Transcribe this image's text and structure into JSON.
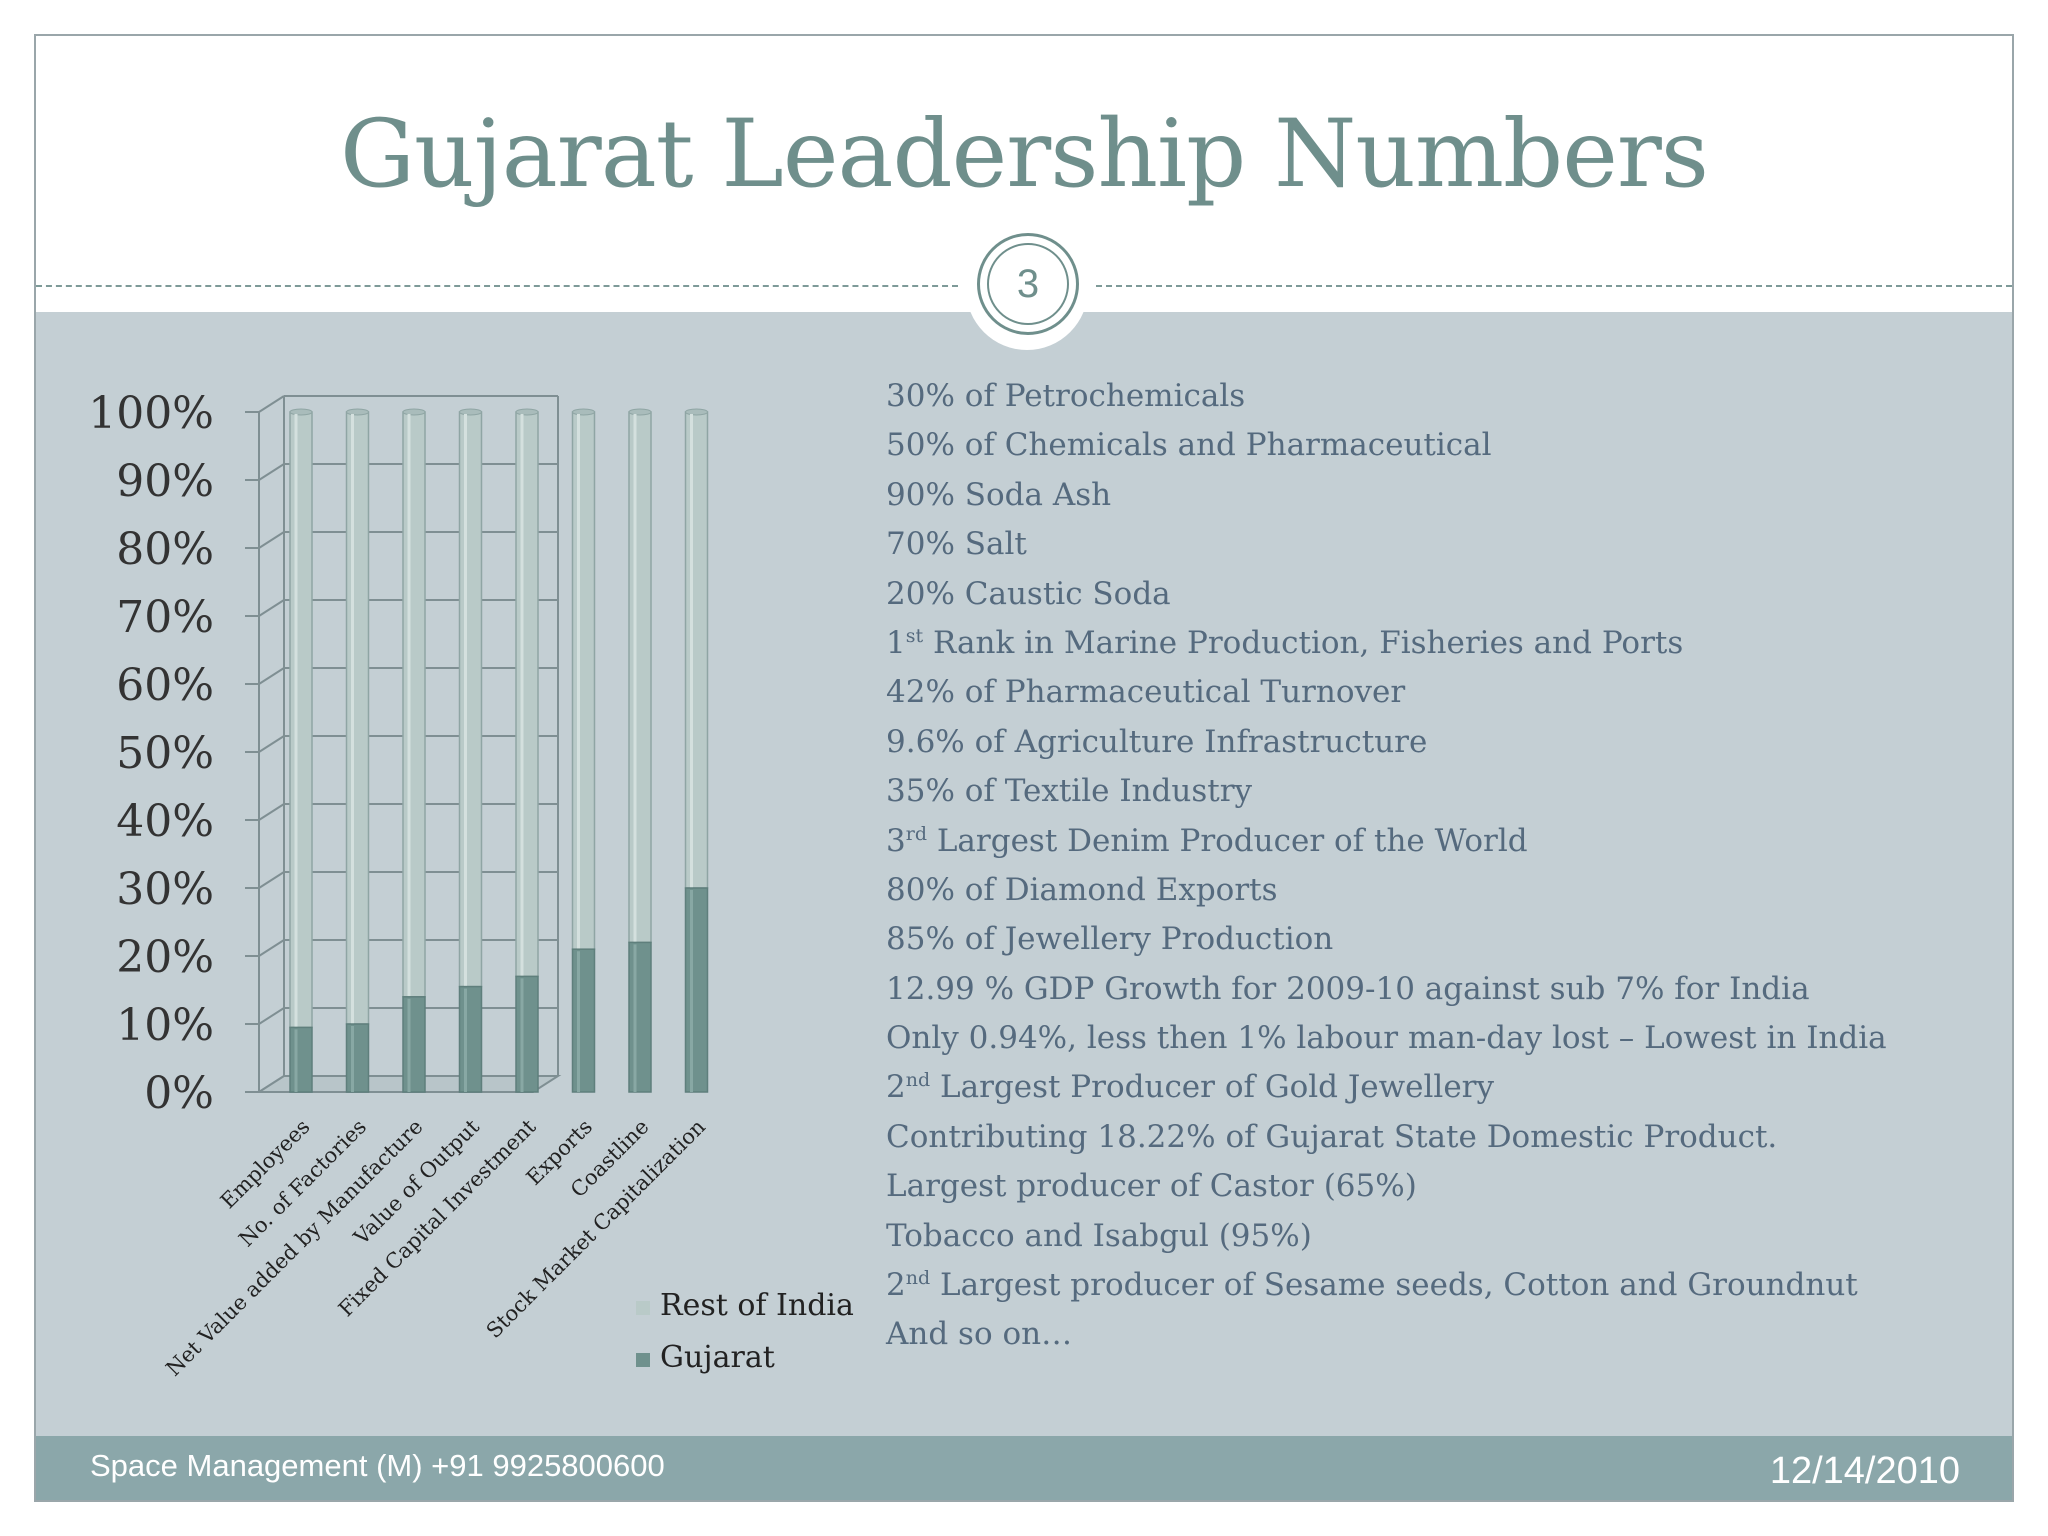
{
  "slide": {
    "title": "Gujarat Leadership Numbers",
    "page_number": "3"
  },
  "chart_data": {
    "type": "bar",
    "stacked": true,
    "percent_stacked": true,
    "categories": [
      "Employees",
      "No. of Factories",
      "Net Value added by Manufacture",
      "Value of Output",
      "Fixed Capital Investment",
      "Exports",
      "Coastline",
      "Stock Market Capitalization"
    ],
    "series": [
      {
        "name": "Gujarat",
        "values": [
          9.5,
          10,
          14,
          15.5,
          17,
          21,
          22,
          30
        ],
        "color": "#6f918d"
      },
      {
        "name": "Rest of India",
        "values": [
          90.5,
          90,
          86,
          84.5,
          83,
          79,
          78,
          70
        ],
        "color": "#b9cac8"
      }
    ],
    "y_ticks": [
      "0%",
      "10%",
      "20%",
      "30%",
      "40%",
      "50%",
      "60%",
      "70%",
      "80%",
      "90%",
      "100%"
    ],
    "ylim": [
      0,
      100
    ],
    "grid": true,
    "legend": "bottom-right",
    "legend_items": [
      {
        "name": "Rest of India",
        "color": "#b9cac8"
      },
      {
        "name": "Gujarat",
        "color": "#6f918d"
      }
    ]
  },
  "facts": [
    {
      "text": "30% of Petrochemicals"
    },
    {
      "text": "50% of Chemicals and Pharmaceutical"
    },
    {
      "text": "90% Soda Ash"
    },
    {
      "text": "70% Salt"
    },
    {
      "text": "20% Caustic Soda"
    },
    {
      "pre": "1",
      "sup": "st",
      "text": " Rank in Marine Production, Fisheries and Ports"
    },
    {
      "text": "42% of Pharmaceutical Turnover"
    },
    {
      "text": "9.6% of Agriculture Infrastructure"
    },
    {
      "text": "35% of Textile Industry"
    },
    {
      "pre": "3",
      "sup": "rd",
      "text": " Largest Denim Producer of the World"
    },
    {
      "text": "80% of Diamond Exports"
    },
    {
      "text": "85% of Jewellery Production"
    },
    {
      "text": "12.99 % GDP Growth for 2009-10 against sub 7% for India"
    },
    {
      "text": "Only 0.94%, less then 1% labour man-day lost – Lowest in India"
    },
    {
      "pre": "2",
      "sup": "nd",
      "text": " Largest Producer of Gold Jewellery"
    },
    {
      "text": "Contributing 18.22% of Gujarat State Domestic Product."
    },
    {
      "text": "Largest producer of Castor (65%)"
    },
    {
      "text": "Tobacco and Isabgul (95%)"
    },
    {
      "pre": "2",
      "sup": "nd",
      "text": " Largest producer of Sesame seeds, Cotton and Groundnut"
    },
    {
      "text": "And so on…"
    }
  ],
  "footer": {
    "left": "Space Management (M) +91 9925800600",
    "date": "12/14/2010"
  }
}
